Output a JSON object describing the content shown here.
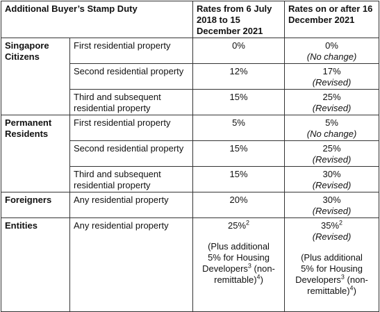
{
  "header": {
    "title": "Additional Buyer’s Stamp Duty",
    "before": "Rates from 6 July 2018 to 15 December 2021",
    "after": "Rates on or after 16 December 2021"
  },
  "groups": [
    {
      "label": "Singapore Citizens",
      "rows": [
        {
          "property": "First residential property",
          "before": "0%",
          "after": "0%",
          "status": "(No change)"
        },
        {
          "property": "Second residential property",
          "before": "12%",
          "after": "17%",
          "status": "(Revised)"
        },
        {
          "property": "Third and subsequent residential property",
          "before": "15%",
          "after": "25%",
          "status": "(Revised)"
        }
      ]
    },
    {
      "label": "Permanent Residents",
      "rows": [
        {
          "property": "First residential property",
          "before": "5%",
          "after": "5%",
          "status": "(No change)"
        },
        {
          "property": "Second residential property",
          "before": "15%",
          "after": "25%",
          "status": "(Revised)"
        },
        {
          "property": "Third and subsequent residential property",
          "before": "15%",
          "after": "30%",
          "status": "(Revised)"
        }
      ]
    },
    {
      "label": "Foreigners",
      "rows": [
        {
          "property": "Any residential property",
          "before": "20%",
          "after": "30%",
          "status": "(Revised)"
        }
      ]
    },
    {
      "label": "Entities",
      "rows": [
        {
          "property": "Any residential property",
          "before": "25%",
          "before_sup": "2",
          "after": "35%",
          "after_sup": "2",
          "status": "(Revised)"
        }
      ]
    }
  ],
  "developer_note": {
    "before": {
      "text": "(Plus additional 5% for Housing Developers",
      "sup1": "3",
      "middle": " (non-remittable)",
      "sup2": "4",
      "end": ")"
    },
    "after": {
      "text": "(Plus additional 5% for Housing Developers",
      "sup1": "3",
      "middle": " (non-remittable)",
      "sup2": "4",
      "end": ")"
    }
  }
}
